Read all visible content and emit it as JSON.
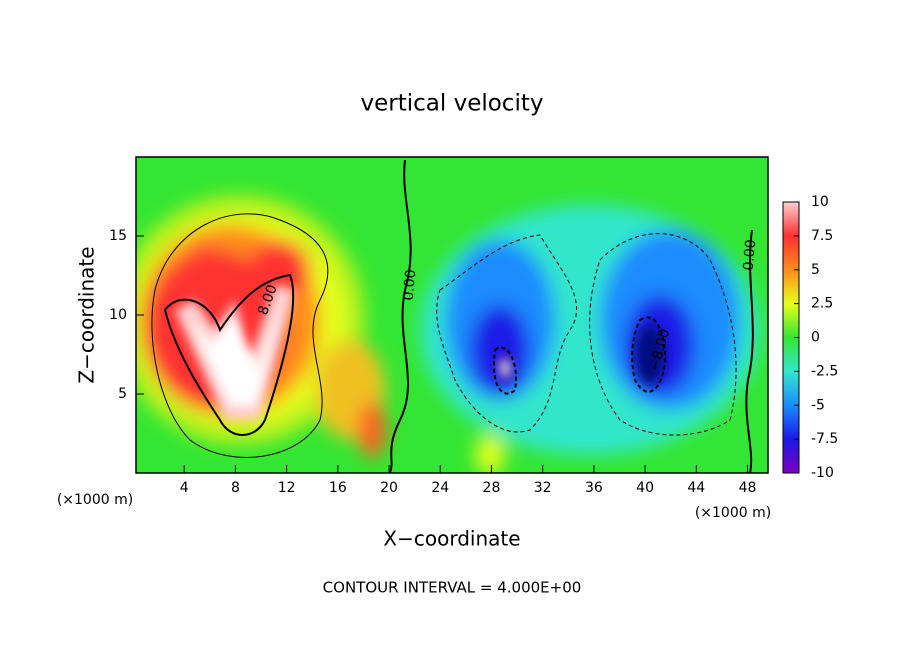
{
  "chart_data": {
    "type": "contour",
    "title": "vertical velocity",
    "x_label": "X−coordinate",
    "y_label": "Z−coordinate",
    "x_unit": "(×1000 m)",
    "y_unit": "(×1000 m)",
    "footer": "CONTOUR INTERVAL = 4.000E+00",
    "xlim": [
      0,
      49.6
    ],
    "xticks": [
      4,
      8,
      12,
      16,
      20,
      24,
      28,
      32,
      36,
      40,
      44,
      48
    ],
    "ylim": [
      0,
      20
    ],
    "yticks": [
      5,
      10,
      15
    ],
    "colorbar": {
      "lim": [
        -10,
        10
      ],
      "ticks": [
        10,
        7.5,
        5,
        2.5,
        0,
        -2.5,
        -5,
        -7.5,
        -10
      ],
      "colors": [
        "#ffd0d0",
        "#ff3030",
        "#ff8c1a",
        "#e6ff1a",
        "#33e633",
        "#33e6cc",
        "#1a8cff",
        "#1a1ae6",
        "#8000c0"
      ]
    },
    "contour_labels": [
      "8.00",
      "0.00",
      "0.00",
      "−8.00"
    ]
  }
}
